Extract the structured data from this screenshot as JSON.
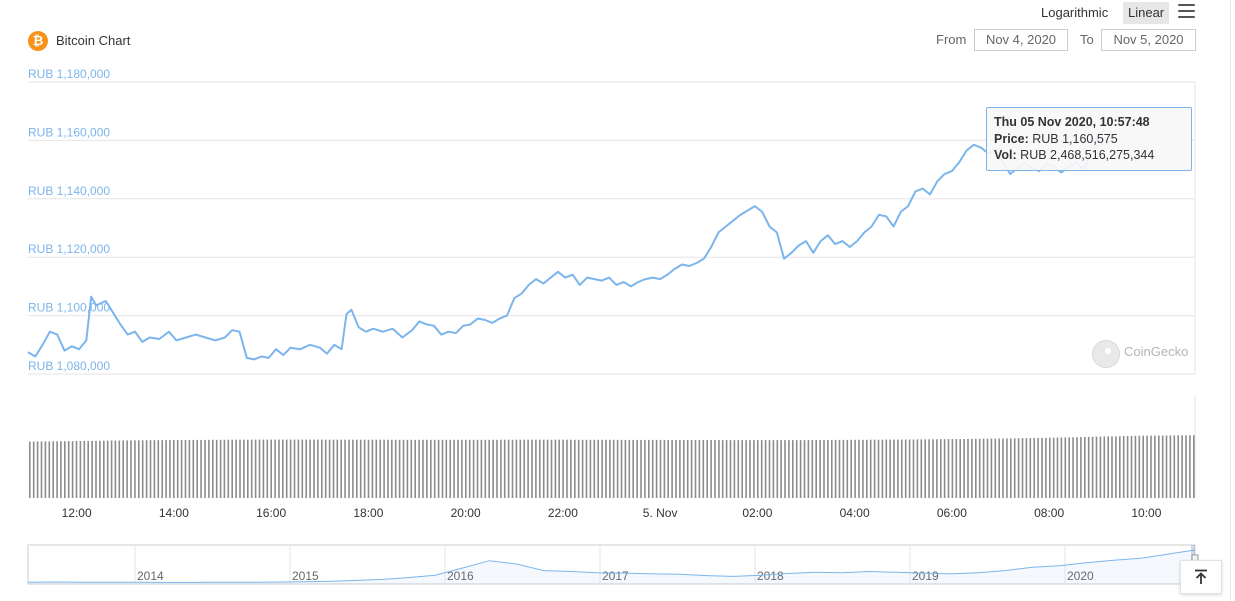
{
  "toolbar": {
    "log_label": "Logarithmic",
    "linear_label": "Linear",
    "menu_icon": "hamburger-menu-icon"
  },
  "header": {
    "title": "Bitcoin Chart",
    "coin_icon": "bitcoin-icon"
  },
  "range": {
    "from_label": "From",
    "from_value": "Nov 4, 2020",
    "to_label": "To",
    "to_value": "Nov 5, 2020"
  },
  "tooltip": {
    "date": "Thu 05 Nov 2020, 10:57:48",
    "price_label": "Price:",
    "price_value": "RUB 1,160,575",
    "vol_label": "Vol:",
    "vol_value": "RUB 2,468,516,275,344"
  },
  "watermark": "CoinGecko",
  "colors": {
    "line": "#7cb5ec",
    "volume": "#8c8c8c",
    "bitcoin": "#f7931a"
  },
  "chart_data": {
    "type": "line",
    "scale": "linear",
    "grid": true,
    "y_ticks": [
      {
        "value": 1080000,
        "label": "RUB 1,080,000"
      },
      {
        "value": 1100000,
        "label": "RUB 1,100,000"
      },
      {
        "value": 1120000,
        "label": "RUB 1,120,000"
      },
      {
        "value": 1140000,
        "label": "RUB 1,140,000"
      },
      {
        "value": 1160000,
        "label": "RUB 1,160,000"
      },
      {
        "value": 1180000,
        "label": "RUB 1,180,000"
      }
    ],
    "ylim": [
      1080000,
      1180000
    ],
    "x_ticks": [
      {
        "hour": 12,
        "label": "12:00"
      },
      {
        "hour": 14,
        "label": "14:00"
      },
      {
        "hour": 16,
        "label": "16:00"
      },
      {
        "hour": 18,
        "label": "18:00"
      },
      {
        "hour": 20,
        "label": "20:00"
      },
      {
        "hour": 22,
        "label": "22:00"
      },
      {
        "hour": 24,
        "label": "5. Nov"
      },
      {
        "hour": 26,
        "label": "02:00"
      },
      {
        "hour": 28,
        "label": "04:00"
      },
      {
        "hour": 30,
        "label": "06:00"
      },
      {
        "hour": 32,
        "label": "08:00"
      },
      {
        "hour": 34,
        "label": "10:00"
      }
    ],
    "xlim_hours": [
      11,
      35
    ],
    "series": [
      {
        "points": [
          [
            11.0,
            1087500
          ],
          [
            11.15,
            1086000
          ],
          [
            11.3,
            1090000
          ],
          [
            11.45,
            1094500
          ],
          [
            11.6,
            1093500
          ],
          [
            11.75,
            1088000
          ],
          [
            11.9,
            1089500
          ],
          [
            12.05,
            1088500
          ],
          [
            12.2,
            1091500
          ],
          [
            12.3,
            1106500
          ],
          [
            12.4,
            1103500
          ],
          [
            12.6,
            1105000
          ],
          [
            12.75,
            1101000
          ],
          [
            12.9,
            1097000
          ],
          [
            13.05,
            1093500
          ],
          [
            13.2,
            1094500
          ],
          [
            13.35,
            1091000
          ],
          [
            13.5,
            1092500
          ],
          [
            13.7,
            1092000
          ],
          [
            13.9,
            1094500
          ],
          [
            14.05,
            1091500
          ],
          [
            14.25,
            1092500
          ],
          [
            14.45,
            1093500
          ],
          [
            14.65,
            1092500
          ],
          [
            14.85,
            1091500
          ],
          [
            15.05,
            1092500
          ],
          [
            15.2,
            1095000
          ],
          [
            15.35,
            1094500
          ],
          [
            15.5,
            1085500
          ],
          [
            15.65,
            1085000
          ],
          [
            15.8,
            1086000
          ],
          [
            15.95,
            1085500
          ],
          [
            16.1,
            1088500
          ],
          [
            16.25,
            1086500
          ],
          [
            16.4,
            1089000
          ],
          [
            16.6,
            1088500
          ],
          [
            16.8,
            1090000
          ],
          [
            17.0,
            1089000
          ],
          [
            17.15,
            1087000
          ],
          [
            17.3,
            1090000
          ],
          [
            17.45,
            1088500
          ],
          [
            17.55,
            1100500
          ],
          [
            17.65,
            1102000
          ],
          [
            17.8,
            1096000
          ],
          [
            17.95,
            1094500
          ],
          [
            18.1,
            1095500
          ],
          [
            18.3,
            1094500
          ],
          [
            18.5,
            1095500
          ],
          [
            18.7,
            1092500
          ],
          [
            18.9,
            1095000
          ],
          [
            19.05,
            1098000
          ],
          [
            19.2,
            1097000
          ],
          [
            19.35,
            1096500
          ],
          [
            19.5,
            1093500
          ],
          [
            19.65,
            1094500
          ],
          [
            19.8,
            1094000
          ],
          [
            19.95,
            1096500
          ],
          [
            20.1,
            1097000
          ],
          [
            20.25,
            1099000
          ],
          [
            20.4,
            1098500
          ],
          [
            20.55,
            1097500
          ],
          [
            20.7,
            1099000
          ],
          [
            20.85,
            1100000
          ],
          [
            21.0,
            1106000
          ],
          [
            21.15,
            1107500
          ],
          [
            21.3,
            1110500
          ],
          [
            21.45,
            1112500
          ],
          [
            21.6,
            1111000
          ],
          [
            21.75,
            1113000
          ],
          [
            21.9,
            1115000
          ],
          [
            22.05,
            1113000
          ],
          [
            22.2,
            1114000
          ],
          [
            22.35,
            1110500
          ],
          [
            22.5,
            1113000
          ],
          [
            22.65,
            1112500
          ],
          [
            22.8,
            1112000
          ],
          [
            22.95,
            1113000
          ],
          [
            23.1,
            1110500
          ],
          [
            23.25,
            1111500
          ],
          [
            23.4,
            1110000
          ],
          [
            23.55,
            1111500
          ],
          [
            23.7,
            1112500
          ],
          [
            23.85,
            1113000
          ],
          [
            24.0,
            1112500
          ],
          [
            24.15,
            1114000
          ],
          [
            24.3,
            1116000
          ],
          [
            24.45,
            1117500
          ],
          [
            24.6,
            1117000
          ],
          [
            24.75,
            1118000
          ],
          [
            24.9,
            1119500
          ],
          [
            25.05,
            1123500
          ],
          [
            25.2,
            1128500
          ],
          [
            25.35,
            1130500
          ],
          [
            25.5,
            1132500
          ],
          [
            25.65,
            1134500
          ],
          [
            25.8,
            1136000
          ],
          [
            25.95,
            1137500
          ],
          [
            26.1,
            1135500
          ],
          [
            26.25,
            1130500
          ],
          [
            26.4,
            1128500
          ],
          [
            26.55,
            1119500
          ],
          [
            26.7,
            1121500
          ],
          [
            26.85,
            1124000
          ],
          [
            27.0,
            1125500
          ],
          [
            27.15,
            1121500
          ],
          [
            27.3,
            1125500
          ],
          [
            27.45,
            1127500
          ],
          [
            27.6,
            1124500
          ],
          [
            27.75,
            1125500
          ],
          [
            27.9,
            1123500
          ],
          [
            28.05,
            1125500
          ],
          [
            28.2,
            1128500
          ],
          [
            28.35,
            1130500
          ],
          [
            28.5,
            1134500
          ],
          [
            28.65,
            1134000
          ],
          [
            28.8,
            1130500
          ],
          [
            28.95,
            1135500
          ],
          [
            29.1,
            1137500
          ],
          [
            29.25,
            1142500
          ],
          [
            29.4,
            1143500
          ],
          [
            29.55,
            1141500
          ],
          [
            29.7,
            1146000
          ],
          [
            29.85,
            1148500
          ],
          [
            30.0,
            1149500
          ],
          [
            30.15,
            1152500
          ],
          [
            30.3,
            1156500
          ],
          [
            30.45,
            1158500
          ],
          [
            30.6,
            1157500
          ],
          [
            30.75,
            1155500
          ],
          [
            30.9,
            1157000
          ],
          [
            31.05,
            1152500
          ],
          [
            31.2,
            1148500
          ],
          [
            31.35,
            1150500
          ],
          [
            31.5,
            1152500
          ],
          [
            31.65,
            1150500
          ],
          [
            31.8,
            1149500
          ],
          [
            31.95,
            1152000
          ],
          [
            32.1,
            1151000
          ],
          [
            32.25,
            1149000
          ],
          [
            32.4,
            1151000
          ],
          [
            32.55,
            1152500
          ],
          [
            32.7,
            1150000
          ],
          [
            32.85,
            1154500
          ],
          [
            33.0,
            1160575
          ]
        ]
      }
    ],
    "volume": {
      "values_rub": [
        2218000000000,
        2230000000000,
        2245000000000,
        2260000000000,
        2270000000000,
        2278000000000,
        2284000000000,
        2290000000000,
        2294000000000,
        2296000000000,
        2294000000000,
        2292000000000,
        2290000000000,
        2289000000000,
        2288000000000,
        2288000000000,
        2289000000000,
        2290000000000,
        2290000000000,
        2290000000000,
        2287000000000,
        2285000000000,
        2283000000000,
        2280000000000,
        2278000000000,
        2276000000000,
        2274000000000,
        2275000000000,
        2280000000000,
        2286000000000,
        2293000000000,
        2300000000000,
        2310000000000,
        2322000000000,
        2335000000000,
        2350000000000,
        2370000000000,
        2392000000000,
        2420000000000,
        2445000000000,
        2458000000000,
        2468516275344
      ],
      "hour_range": [
        11,
        35
      ]
    },
    "navigator": {
      "year_labels": [
        "2014",
        "2015",
        "2016",
        "2017",
        "2018",
        "2019",
        "2020"
      ],
      "profile": [
        1000,
        1200,
        1000,
        900,
        800,
        700,
        700,
        800,
        900,
        1100,
        1500,
        2000,
        3000,
        4200,
        6500,
        9500,
        18000,
        27000,
        23000,
        15000,
        14000,
        12500,
        12000,
        11000,
        10500,
        9000,
        8000,
        9500,
        11500,
        13000,
        12500,
        14000,
        13000,
        12000,
        11000,
        12500,
        15000,
        19000,
        21000,
        24500,
        27500,
        30000,
        35000,
        40000
      ]
    }
  }
}
